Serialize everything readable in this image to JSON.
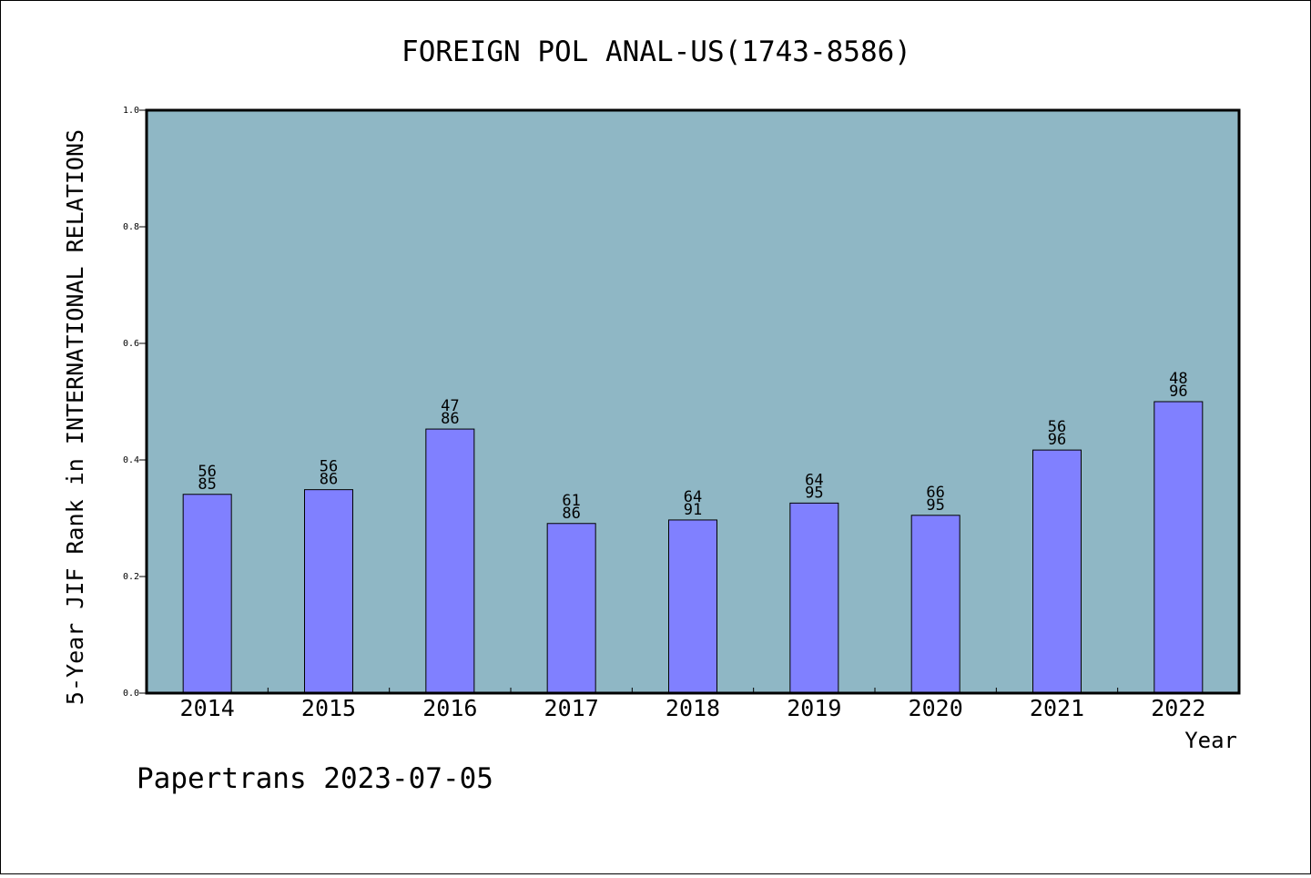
{
  "chart_data": {
    "type": "bar",
    "title": "FOREIGN POL ANAL-US(1743-8586)",
    "xlabel": "Year",
    "ylabel": "5-Year JIF Rank in INTERNATIONAL RELATIONS",
    "categories": [
      "2014",
      "2015",
      "2016",
      "2017",
      "2018",
      "2019",
      "2020",
      "2021",
      "2022"
    ],
    "values": [
      0.341,
      0.349,
      0.453,
      0.291,
      0.297,
      0.326,
      0.305,
      0.417,
      0.5
    ],
    "bar_labels": [
      {
        "top": "56",
        "bottom": "85"
      },
      {
        "top": "56",
        "bottom": "86"
      },
      {
        "top": "47",
        "bottom": "86"
      },
      {
        "top": "61",
        "bottom": "86"
      },
      {
        "top": "64",
        "bottom": "91"
      },
      {
        "top": "64",
        "bottom": "95"
      },
      {
        "top": "66",
        "bottom": "95"
      },
      {
        "top": "56",
        "bottom": "96"
      },
      {
        "top": "48",
        "bottom": "96"
      }
    ],
    "ylim": [
      0,
      1
    ],
    "yticks": [
      "0.0",
      "0.2",
      "0.4",
      "0.6",
      "0.8",
      "1.0"
    ],
    "grid": false,
    "colors": {
      "plot_background": "#8fb7c5",
      "bar_fill": "#8080ff",
      "bar_stroke": "#000000"
    }
  },
  "footer": "Papertrans 2023-07-05"
}
